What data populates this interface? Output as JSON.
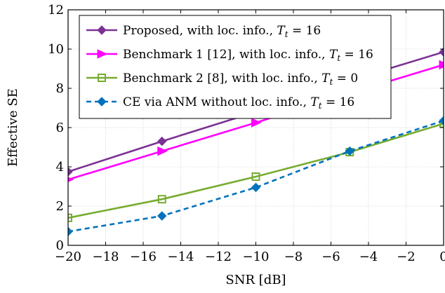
{
  "chart_data": {
    "type": "line",
    "xlabel": "SNR [dB]",
    "ylabel": "Effective SE",
    "xlim": [
      -20,
      0
    ],
    "ylim": [
      0,
      12
    ],
    "xticks": [
      -20,
      -18,
      -16,
      -14,
      -12,
      -10,
      -8,
      -6,
      -4,
      -2,
      0
    ],
    "xtick_labels": [
      "−20",
      "−18",
      "−16",
      "−14",
      "−12",
      "−10",
      "−8",
      "−6",
      "−4",
      "−2",
      "0"
    ],
    "yticks": [
      0,
      2,
      4,
      6,
      8,
      10,
      12
    ],
    "ytick_labels": [
      "0",
      "2",
      "4",
      "6",
      "8",
      "10",
      "12"
    ],
    "grid": true,
    "legend_position": "top-left",
    "series": [
      {
        "name": "Proposed, with loc. info., Tt = 16",
        "label_main": "Proposed, with loc. info., ",
        "label_sub": "16",
        "color": "#7b3294",
        "marker": "diamond",
        "dashed": false,
        "x": [
          -20,
          -15,
          -10,
          -5,
          0
        ],
        "y": [
          3.75,
          5.3,
          6.8,
          8.4,
          9.85
        ]
      },
      {
        "name": "Benchmark 1 [12], with loc. info., Tt = 16",
        "label_main": "Benchmark 1 [12], with loc. info., ",
        "label_sub": "16",
        "color": "#ff00ff",
        "marker": "triangle-right",
        "dashed": false,
        "x": [
          -20,
          -15,
          -10,
          -5,
          0
        ],
        "y": [
          3.35,
          4.8,
          6.25,
          7.75,
          9.2
        ]
      },
      {
        "name": "Benchmark 2 [8], with loc. info., Tt = 0",
        "label_main": "Benchmark 2 [8], with loc. info., ",
        "label_sub": "0",
        "color": "#77ac30",
        "marker": "square",
        "dashed": false,
        "x": [
          -20,
          -15,
          -10,
          -5,
          0
        ],
        "y": [
          1.4,
          2.35,
          3.5,
          4.75,
          6.2
        ]
      },
      {
        "name": "CE via ANM without loc. info., Tt = 16",
        "label_main": "CE via ANM without loc. info., ",
        "label_sub": "16",
        "color": "#0072bd",
        "marker": "diamond",
        "dashed": true,
        "x": [
          -20,
          -15,
          -10,
          -5,
          0
        ],
        "y": [
          0.7,
          1.5,
          2.95,
          4.8,
          6.35
        ]
      }
    ]
  }
}
